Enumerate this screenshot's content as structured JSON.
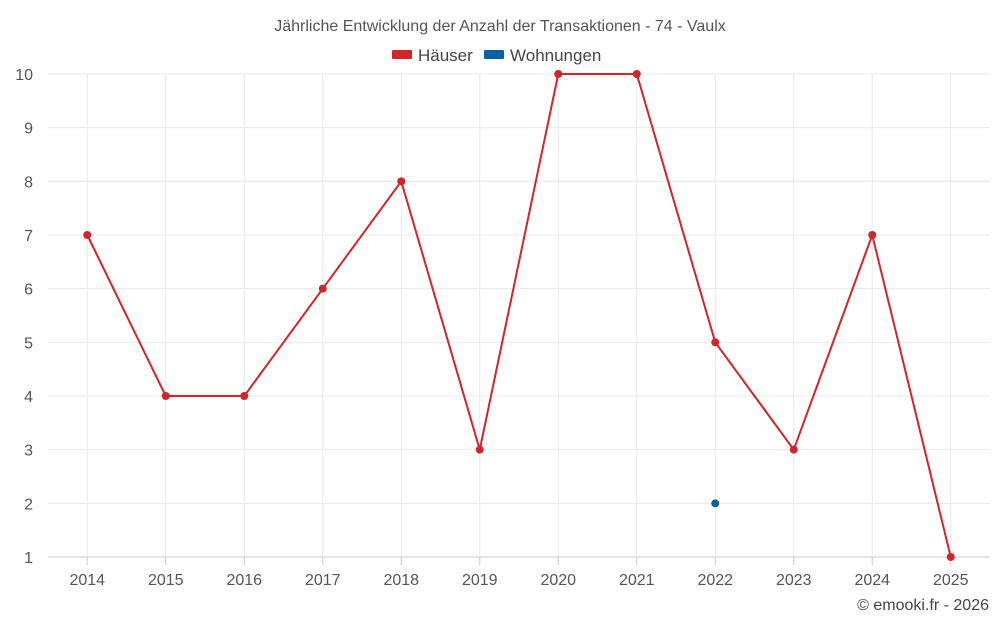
{
  "chart_data": {
    "type": "line",
    "title": "Jährliche Entwicklung der Anzahl der Transaktionen - 74 - Vaulx",
    "categories": [
      "2014",
      "2015",
      "2016",
      "2017",
      "2018",
      "2019",
      "2020",
      "2021",
      "2022",
      "2023",
      "2024",
      "2025"
    ],
    "series": [
      {
        "name": "Häuser",
        "color": "#d0252a",
        "values": [
          7,
          4,
          4,
          6,
          8,
          3,
          10,
          10,
          5,
          3,
          7,
          1
        ]
      },
      {
        "name": "Wohnungen",
        "color": "#0b63a3",
        "values": [
          null,
          null,
          null,
          null,
          null,
          null,
          null,
          null,
          2,
          null,
          null,
          null
        ]
      }
    ],
    "y_ticks": [
      "1",
      "2",
      "3",
      "4",
      "5",
      "6",
      "7",
      "8",
      "9",
      "10"
    ],
    "ylim": [
      1,
      10
    ],
    "grid": true,
    "legend_position": "top-center",
    "xlabel": "",
    "ylabel": ""
  },
  "credit": "© emooki.fr - 2026"
}
